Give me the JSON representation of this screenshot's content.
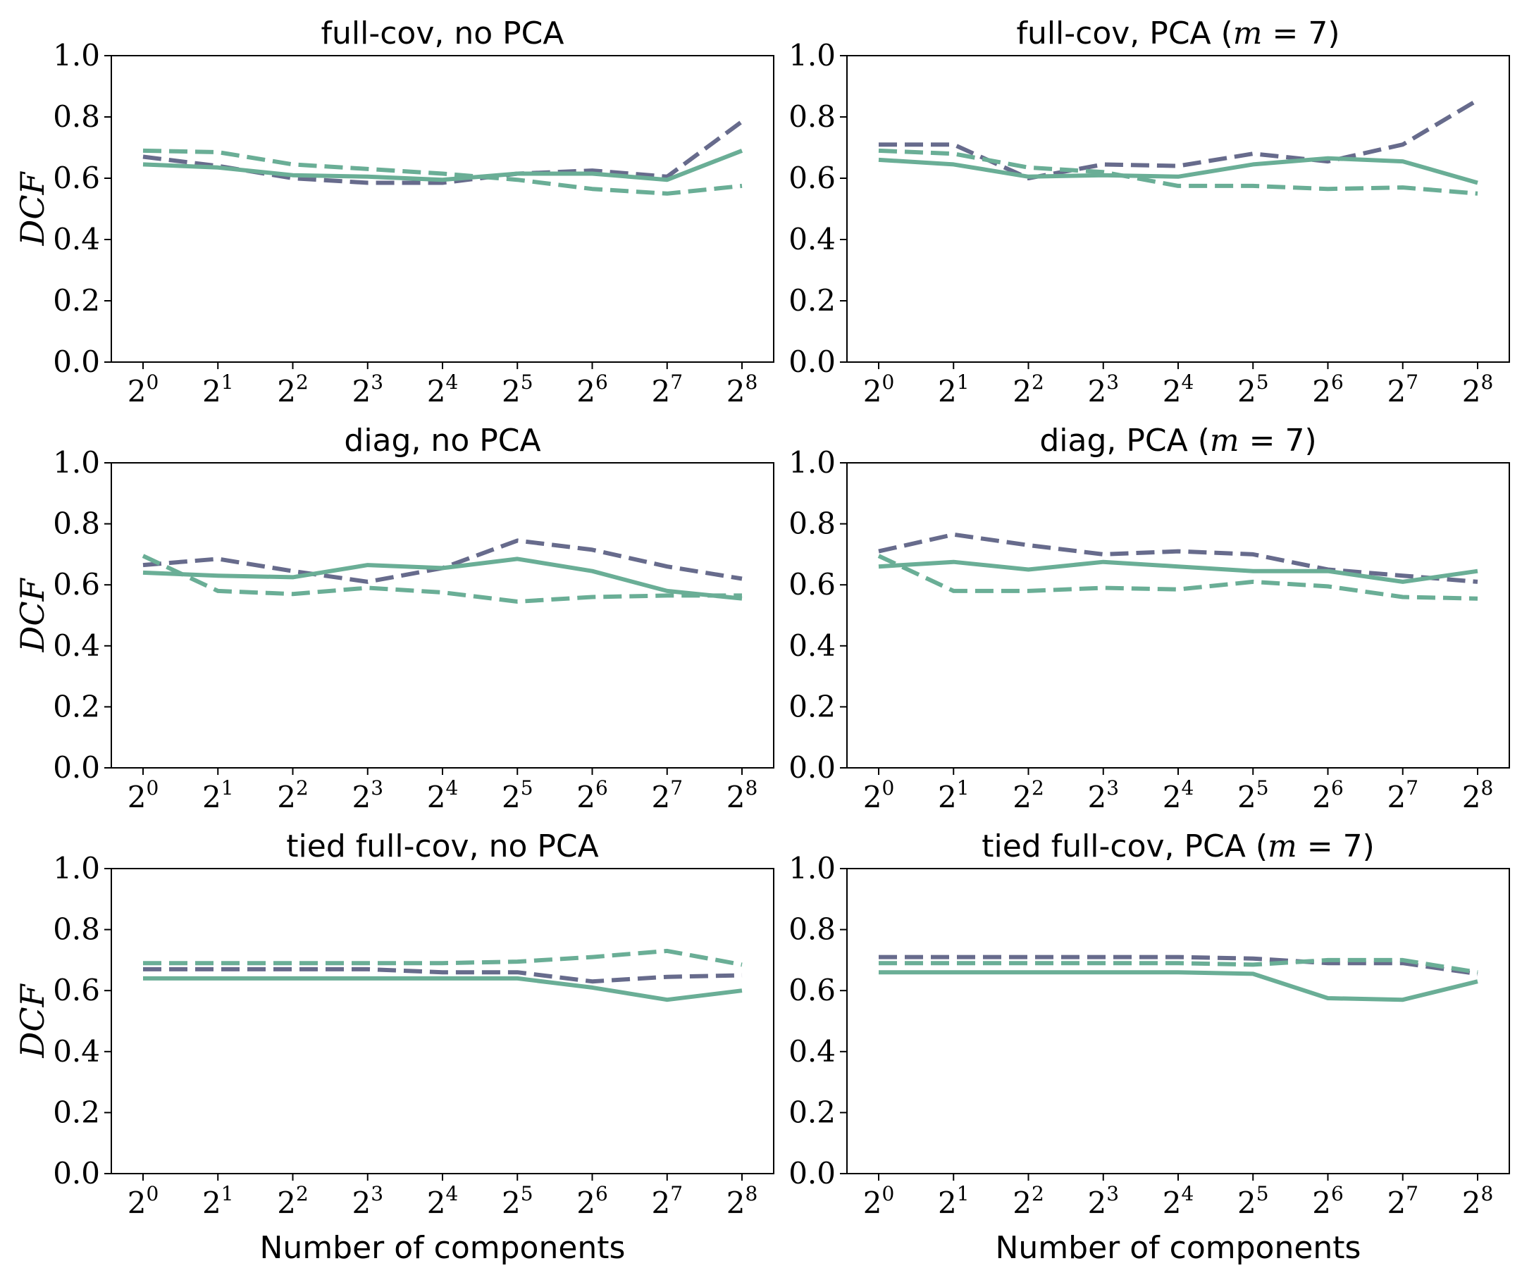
{
  "colors": {
    "slate": "#676b8c",
    "green": "#6aae96"
  },
  "chart_data": [
    {
      "type": "line",
      "title": "full-cov, no PCA",
      "ylabel": "DCF",
      "xlabel": "",
      "x": [
        "2^0",
        "2^1",
        "2^2",
        "2^3",
        "2^4",
        "2^5",
        "2^6",
        "2^7",
        "2^8"
      ],
      "ylim": [
        0,
        1
      ],
      "yticks": [
        "0.0",
        "0.2",
        "0.4",
        "0.6",
        "0.8",
        "1.0"
      ],
      "series": [
        {
          "color": "slate",
          "style": "dashed",
          "values": [
            0.67,
            0.64,
            0.6,
            0.585,
            0.585,
            0.615,
            0.625,
            0.605,
            0.785
          ]
        },
        {
          "color": "green",
          "style": "dashed",
          "values": [
            0.69,
            0.685,
            0.645,
            0.63,
            0.615,
            0.595,
            0.565,
            0.55,
            0.575
          ]
        },
        {
          "color": "green",
          "style": "solid",
          "values": [
            0.645,
            0.635,
            0.61,
            0.605,
            0.595,
            0.615,
            0.615,
            0.595,
            0.69
          ]
        }
      ]
    },
    {
      "type": "line",
      "title": "full-cov, PCA (m = 7)",
      "ylabel": "",
      "xlabel": "",
      "x": [
        "2^0",
        "2^1",
        "2^2",
        "2^3",
        "2^4",
        "2^5",
        "2^6",
        "2^7",
        "2^8"
      ],
      "ylim": [
        0,
        1
      ],
      "yticks": [
        "0.0",
        "0.2",
        "0.4",
        "0.6",
        "0.8",
        "1.0"
      ],
      "series": [
        {
          "color": "slate",
          "style": "dashed",
          "values": [
            0.71,
            0.71,
            0.6,
            0.645,
            0.64,
            0.68,
            0.655,
            0.71,
            0.855
          ]
        },
        {
          "color": "green",
          "style": "dashed",
          "values": [
            0.69,
            0.68,
            0.635,
            0.62,
            0.575,
            0.575,
            0.565,
            0.57,
            0.55
          ]
        },
        {
          "color": "green",
          "style": "solid",
          "values": [
            0.66,
            0.645,
            0.605,
            0.61,
            0.605,
            0.645,
            0.665,
            0.655,
            0.585
          ]
        }
      ]
    },
    {
      "type": "line",
      "title": "diag, no PCA",
      "ylabel": "DCF",
      "xlabel": "",
      "x": [
        "2^0",
        "2^1",
        "2^2",
        "2^3",
        "2^4",
        "2^5",
        "2^6",
        "2^7",
        "2^8"
      ],
      "ylim": [
        0,
        1
      ],
      "yticks": [
        "0.0",
        "0.2",
        "0.4",
        "0.6",
        "0.8",
        "1.0"
      ],
      "series": [
        {
          "color": "slate",
          "style": "dashed",
          "values": [
            0.665,
            0.685,
            0.645,
            0.61,
            0.655,
            0.745,
            0.715,
            0.66,
            0.62
          ]
        },
        {
          "color": "green",
          "style": "dashed",
          "values": [
            0.695,
            0.58,
            0.57,
            0.59,
            0.575,
            0.545,
            0.56,
            0.565,
            0.565
          ]
        },
        {
          "color": "green",
          "style": "solid",
          "values": [
            0.64,
            0.63,
            0.625,
            0.665,
            0.655,
            0.685,
            0.645,
            0.58,
            0.555
          ]
        }
      ]
    },
    {
      "type": "line",
      "title": "diag, PCA (m = 7)",
      "ylabel": "",
      "xlabel": "",
      "x": [
        "2^0",
        "2^1",
        "2^2",
        "2^3",
        "2^4",
        "2^5",
        "2^6",
        "2^7",
        "2^8"
      ],
      "ylim": [
        0,
        1
      ],
      "yticks": [
        "0.0",
        "0.2",
        "0.4",
        "0.6",
        "0.8",
        "1.0"
      ],
      "series": [
        {
          "color": "slate",
          "style": "dashed",
          "values": [
            0.71,
            0.765,
            0.73,
            0.7,
            0.71,
            0.7,
            0.65,
            0.63,
            0.61
          ]
        },
        {
          "color": "green",
          "style": "dashed",
          "values": [
            0.695,
            0.58,
            0.58,
            0.59,
            0.585,
            0.61,
            0.595,
            0.56,
            0.555
          ]
        },
        {
          "color": "green",
          "style": "solid",
          "values": [
            0.66,
            0.675,
            0.65,
            0.675,
            0.66,
            0.645,
            0.645,
            0.61,
            0.645
          ]
        }
      ]
    },
    {
      "type": "line",
      "title": "tied full-cov, no PCA",
      "ylabel": "DCF",
      "xlabel": "Number of components",
      "x": [
        "2^0",
        "2^1",
        "2^2",
        "2^3",
        "2^4",
        "2^5",
        "2^6",
        "2^7",
        "2^8"
      ],
      "ylim": [
        0,
        1
      ],
      "yticks": [
        "0.0",
        "0.2",
        "0.4",
        "0.6",
        "0.8",
        "1.0"
      ],
      "series": [
        {
          "color": "slate",
          "style": "dashed",
          "values": [
            0.67,
            0.67,
            0.67,
            0.67,
            0.66,
            0.66,
            0.63,
            0.645,
            0.65
          ]
        },
        {
          "color": "green",
          "style": "dashed",
          "values": [
            0.69,
            0.69,
            0.69,
            0.69,
            0.69,
            0.695,
            0.71,
            0.73,
            0.685
          ]
        },
        {
          "color": "green",
          "style": "solid",
          "values": [
            0.64,
            0.64,
            0.64,
            0.64,
            0.64,
            0.64,
            0.61,
            0.57,
            0.6
          ]
        }
      ]
    },
    {
      "type": "line",
      "title": "tied full-cov, PCA (m = 7)",
      "ylabel": "",
      "xlabel": "Number of components",
      "x": [
        "2^0",
        "2^1",
        "2^2",
        "2^3",
        "2^4",
        "2^5",
        "2^6",
        "2^7",
        "2^8"
      ],
      "ylim": [
        0,
        1
      ],
      "yticks": [
        "0.0",
        "0.2",
        "0.4",
        "0.6",
        "0.8",
        "1.0"
      ],
      "series": [
        {
          "color": "slate",
          "style": "dashed",
          "values": [
            0.71,
            0.71,
            0.71,
            0.71,
            0.71,
            0.705,
            0.69,
            0.69,
            0.655
          ]
        },
        {
          "color": "green",
          "style": "dashed",
          "values": [
            0.69,
            0.69,
            0.69,
            0.69,
            0.69,
            0.685,
            0.7,
            0.7,
            0.66
          ]
        },
        {
          "color": "green",
          "style": "solid",
          "values": [
            0.66,
            0.66,
            0.66,
            0.66,
            0.66,
            0.655,
            0.575,
            0.57,
            0.63
          ]
        }
      ]
    }
  ]
}
